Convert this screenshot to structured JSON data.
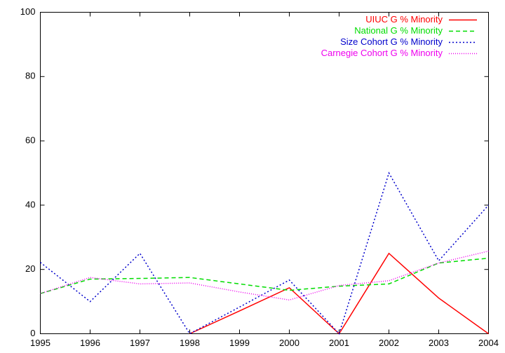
{
  "chart_data": {
    "type": "line",
    "x": [
      1995,
      1996,
      1997,
      1998,
      1999,
      2000,
      2001,
      2002,
      2003,
      2004
    ],
    "series": [
      {
        "name": "UIUC G % Minority",
        "color": "#ff0000",
        "dash": "none",
        "values": [
          null,
          null,
          null,
          0,
          7.1,
          14.3,
          0,
          25,
          11.1,
          0
        ]
      },
      {
        "name": "National G % Minority",
        "color": "#00dd00",
        "dash": "6,4",
        "values": [
          12.5,
          17,
          17.2,
          17.5,
          15.5,
          13.5,
          14.8,
          15.5,
          22,
          23.5
        ]
      },
      {
        "name": "Size Cohort G % Minority",
        "color": "#0000cc",
        "dash": "2,3",
        "values": [
          22.2,
          10,
          25,
          0,
          8.3,
          16.7,
          0,
          50,
          22.7,
          40
        ]
      },
      {
        "name": "Carnegie Cohort G % Minority",
        "color": "#ee00ee",
        "dash": "1,2",
        "values": [
          12.5,
          17.5,
          15.5,
          15.8,
          13,
          10.5,
          15,
          16.5,
          22,
          25.7
        ]
      }
    ],
    "xlim": [
      1995,
      2004
    ],
    "xticks": [
      1995,
      1996,
      1997,
      1998,
      1999,
      2000,
      2001,
      2002,
      2003,
      2004
    ],
    "ylim": [
      0,
      100
    ],
    "yticks": [
      0,
      20,
      40,
      60,
      80,
      100
    ],
    "legend": "top-right"
  }
}
